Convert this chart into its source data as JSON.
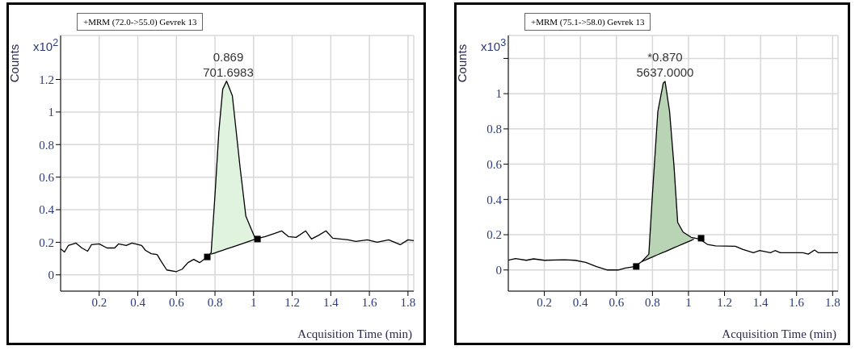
{
  "chart_data": [
    {
      "type": "line",
      "title": "+MRM (72.0->55.0) Gevrek 13",
      "xlabel": "Acquisition Time (min)",
      "ylabel": "Counts",
      "annotations": [
        "x10$^{2}$",
        {
          "text": "0.869\n701.6983",
          "x": 0.869,
          "y": 1.19
        }
      ],
      "xlim": [
        0,
        1.83
      ],
      "xticks": [
        0.2,
        0.4,
        0.6,
        0.8,
        1,
        1.2,
        1.4,
        1.6,
        1.8
      ],
      "ylim": [
        -0.1,
        1.47
      ],
      "yticks": [
        0,
        0.2,
        0.4,
        0.6,
        0.8,
        1,
        1.2
      ],
      "grid": true,
      "series": [
        {
          "color": "#000000",
          "x": [
            0,
            0.02,
            0.04,
            0.08,
            0.11,
            0.14,
            0.16,
            0.2,
            0.24,
            0.28,
            0.3,
            0.34,
            0.37,
            0.42,
            0.44,
            0.47,
            0.5,
            0.52,
            0.55,
            0.6,
            0.63,
            0.66,
            0.69,
            0.72,
            0.76,
            0.78,
            0.8,
            0.82,
            0.84,
            0.86,
            0.89,
            0.93,
            0.96,
            0.99,
            1.01,
            1.06,
            1.11,
            1.145,
            1.18,
            1.22,
            1.27,
            1.3,
            1.34,
            1.375,
            1.41,
            1.49,
            1.53,
            1.59,
            1.64,
            1.7,
            1.76,
            1.8,
            1.83
          ],
          "values": [
            0.16,
            0.14,
            0.18,
            0.195,
            0.165,
            0.145,
            0.185,
            0.19,
            0.165,
            0.165,
            0.19,
            0.18,
            0.195,
            0.18,
            0.15,
            0.13,
            0.125,
            0.085,
            0.03,
            0.02,
            0.035,
            0.075,
            0.095,
            0.075,
            0.11,
            0.135,
            0.49,
            0.88,
            1.14,
            1.19,
            1.1,
            0.66,
            0.36,
            0.275,
            0.22,
            0.235,
            0.255,
            0.27,
            0.235,
            0.23,
            0.27,
            0.22,
            0.245,
            0.27,
            0.225,
            0.215,
            0.205,
            0.215,
            0.2,
            0.215,
            0.185,
            0.215,
            0.21
          ]
        },
        {
          "type": "area",
          "color": "#dff3df",
          "x": [
            0.78,
            0.8,
            0.82,
            0.84,
            0.86,
            0.89,
            0.93,
            0.96,
            0.99,
            1.01
          ],
          "values": [
            0.135,
            0.49,
            0.88,
            1.14,
            1.19,
            1.1,
            0.66,
            0.36,
            0.275,
            0.22
          ]
        },
        {
          "type": "line",
          "color": "#000000",
          "x": [
            0.78,
            0.8,
            0.82,
            0.84,
            0.86,
            0.89,
            0.93,
            0.96,
            0.99,
            1.01
          ],
          "values": [
            0.127,
            0.135,
            0.143,
            0.151,
            0.159,
            0.171,
            0.187,
            0.199,
            0.211,
            0.22
          ]
        },
        {
          "type": "scatter",
          "color": "#000000",
          "marker": "square",
          "x": [
            0.76,
            1.02
          ],
          "values": [
            0.11,
            0.22
          ]
        }
      ]
    },
    {
      "type": "line",
      "title": "+MRM (75.1->58.0) Gevrek 13",
      "xlabel": "Acquisition Time (min)",
      "ylabel": "Counts",
      "annotations": [
        "x10$^{3}$",
        {
          "text": "*0.870\n5637.0000",
          "x": 0.87,
          "y": 1.07
        }
      ],
      "xlim": [
        0,
        1.83
      ],
      "xticks": [
        0.2,
        0.4,
        0.6,
        0.8,
        1,
        1.2,
        1.4,
        1.6,
        1.8
      ],
      "ylim": [
        -0.12,
        1.33
      ],
      "yticks": [
        0,
        0.2,
        0.4,
        0.6,
        0.8,
        1,
        {
          "value": 1.2,
          "label": null
        }
      ],
      "grid": true,
      "series": [
        {
          "color": "#000000",
          "x": [
            0,
            0.04,
            0.1,
            0.14,
            0.2,
            0.31,
            0.37,
            0.43,
            0.49,
            0.55,
            0.61,
            0.65,
            0.7,
            0.74,
            0.78,
            0.8,
            0.83,
            0.86,
            0.87,
            0.895,
            0.92,
            0.94,
            0.97,
            1.015,
            1.06,
            1.105,
            1.15,
            1.26,
            1.3,
            1.36,
            1.395,
            1.455,
            1.48,
            1.51,
            1.635,
            1.665,
            1.7,
            1.72,
            1.83
          ],
          "values": [
            0.055,
            0.065,
            0.055,
            0.063,
            0.055,
            0.058,
            0.055,
            0.043,
            0.019,
            0,
            0,
            0.011,
            0.019,
            0.047,
            0.09,
            0.43,
            0.9,
            1.06,
            1.07,
            0.9,
            0.585,
            0.27,
            0.215,
            0.185,
            0.176,
            0.145,
            0.137,
            0.134,
            0.117,
            0.098,
            0.11,
            0.098,
            0.11,
            0.098,
            0.098,
            0.09,
            0.113,
            0.098,
            0.098
          ]
        },
        {
          "type": "area",
          "color": "#b9d4b5",
          "x": [
            0.74,
            0.78,
            0.8,
            0.83,
            0.86,
            0.87,
            0.895,
            0.92,
            0.94,
            0.97,
            1.015,
            1.03
          ],
          "values": [
            0.047,
            0.09,
            0.43,
            0.9,
            1.06,
            1.07,
            0.9,
            0.585,
            0.27,
            0.215,
            0.185,
            0.175
          ]
        },
        {
          "type": "line",
          "color": "#000000",
          "x": [
            0.74,
            0.78,
            0.8,
            0.83,
            0.86,
            0.87,
            0.895,
            0.92,
            0.94,
            0.97,
            1.015,
            1.03
          ],
          "values": [
            0.047,
            0.065,
            0.074,
            0.087,
            0.1,
            0.104,
            0.115,
            0.126,
            0.135,
            0.148,
            0.168,
            0.175
          ]
        },
        {
          "type": "scatter",
          "color": "#000000",
          "marker": "square",
          "x": [
            0.71,
            1.07
          ],
          "values": [
            0.02,
            0.18
          ]
        }
      ]
    }
  ]
}
